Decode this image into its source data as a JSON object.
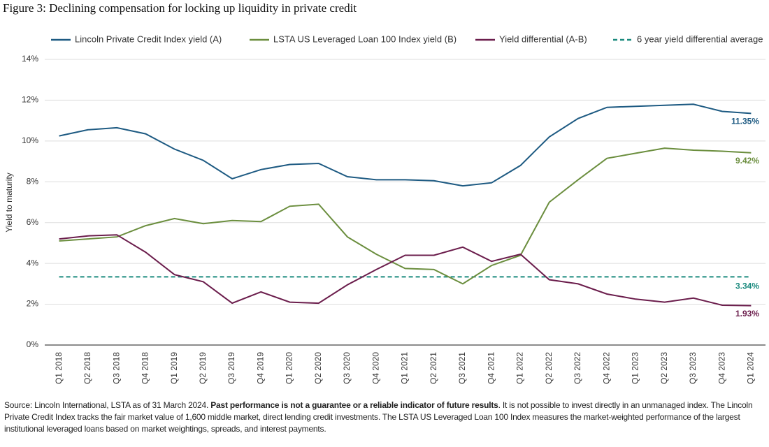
{
  "chart_data": {
    "type": "line",
    "title": "Figure 3: Declining compensation for locking up liquidity in private credit",
    "ylabel": "Yield to maturity",
    "categories": [
      "Q1 2018",
      "Q2 2018",
      "Q3 2018",
      "Q4 2018",
      "Q1 2019",
      "Q2 2019",
      "Q3 2019",
      "Q4 2019",
      "Q1 2020",
      "Q2 2020",
      "Q3 2020",
      "Q4 2020",
      "Q1 2021",
      "Q2 2021",
      "Q3 2021",
      "Q4 2021",
      "Q1 2022",
      "Q2 2022",
      "Q3 2022",
      "Q4 2022",
      "Q1 2023",
      "Q2 2023",
      "Q3 2023",
      "Q4 2023",
      "Q1 2024"
    ],
    "series": [
      {
        "name": "Lincoln Private Credit Index yield (A)",
        "color": "#1d5a82",
        "values": [
          10.25,
          10.55,
          10.65,
          10.35,
          9.6,
          9.05,
          8.15,
          8.6,
          8.85,
          8.9,
          8.25,
          8.1,
          8.1,
          8.05,
          7.8,
          7.95,
          8.8,
          10.2,
          11.1,
          11.65,
          11.7,
          11.75,
          11.8,
          11.45,
          11.35
        ],
        "value_labels": [
          null,
          null,
          null,
          null,
          null,
          null,
          null,
          null,
          null,
          null,
          null,
          null,
          null,
          null,
          null,
          null,
          null,
          null,
          null,
          null,
          null,
          null,
          null,
          null,
          "11.35%"
        ]
      },
      {
        "name": "LSTA US Leveraged Loan 100 Index yield (B)",
        "color": "#6b8e3e",
        "values": [
          5.1,
          5.2,
          5.3,
          5.85,
          6.2,
          5.95,
          6.1,
          6.05,
          6.8,
          6.9,
          5.3,
          4.45,
          3.75,
          3.7,
          3.0,
          3.9,
          4.4,
          7.0,
          8.1,
          9.15,
          9.4,
          9.65,
          9.55,
          9.5,
          9.42
        ],
        "value_labels": [
          null,
          null,
          null,
          null,
          null,
          null,
          null,
          null,
          null,
          null,
          null,
          null,
          null,
          null,
          null,
          null,
          null,
          null,
          null,
          null,
          null,
          null,
          null,
          null,
          "9.42%"
        ]
      },
      {
        "name": "Yield differential (A-B)",
        "color": "#6b1d4c",
        "values": [
          5.2,
          5.35,
          5.4,
          4.55,
          3.45,
          3.1,
          2.05,
          2.6,
          2.1,
          2.05,
          2.95,
          3.7,
          4.4,
          4.4,
          4.8,
          4.1,
          4.45,
          3.2,
          3.0,
          2.5,
          2.25,
          2.1,
          2.3,
          1.95,
          1.93
        ],
        "value_labels": [
          null,
          null,
          null,
          null,
          null,
          null,
          null,
          null,
          null,
          null,
          null,
          null,
          null,
          null,
          null,
          null,
          null,
          null,
          null,
          null,
          null,
          null,
          null,
          null,
          "1.93%"
        ]
      }
    ],
    "reference_line": {
      "name": "6 year yield differential average",
      "value": 3.34,
      "value_label": "3.34%",
      "color": "#1b8a7e",
      "dashed": true
    },
    "ylim": [
      0,
      14
    ],
    "yticks": [
      {
        "value": 0,
        "label": "0%"
      },
      {
        "value": 2,
        "label": "2%"
      },
      {
        "value": 4,
        "label": "4%"
      },
      {
        "value": 6,
        "label": "6%"
      },
      {
        "value": 8,
        "label": "8%"
      },
      {
        "value": 10,
        "label": "10%"
      },
      {
        "value": 12,
        "label": "12%"
      },
      {
        "value": 14,
        "label": "14%"
      }
    ],
    "grid": true,
    "legend": "top",
    "source": [
      "Source: Lincoln International, LSTA as of 31 March 2024. ",
      "Past performance is not a guarantee or a reliable indicator of future results",
      ". It is not possible to invest directly in an unmanaged index. The Lincoln Private Credit Index tracks the fair market value of 1,600 middle market, direct lending credit investments. The LSTA US Leveraged Loan 100 Index measures the market-weighted performance of the largest institutional leveraged loans based on market weightings, spreads, and interest payments."
    ]
  }
}
